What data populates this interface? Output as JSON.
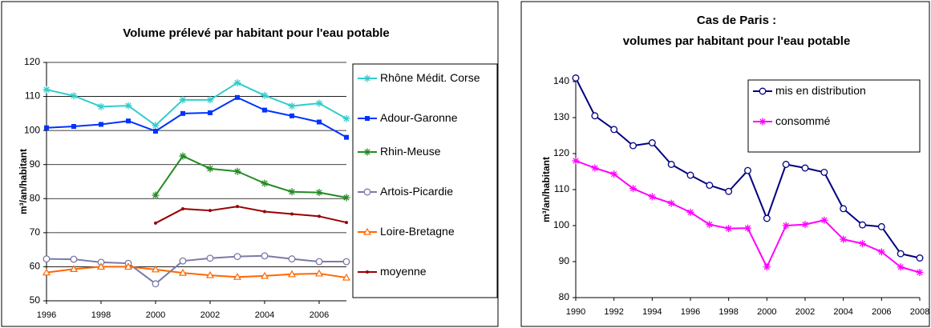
{
  "chart_data": [
    {
      "type": "line",
      "title": "Volume prélevé par habitant pour l'eau potable",
      "y_label": "m³/an/habitant",
      "x": [
        1996,
        1997,
        1998,
        1999,
        2000,
        2001,
        2002,
        2003,
        2004,
        2005,
        2006,
        2007
      ],
      "xlim": [
        1996,
        2007
      ],
      "xticks": [
        1996,
        1998,
        2000,
        2002,
        2004,
        2006
      ],
      "ylim": [
        50,
        120
      ],
      "yticks": [
        50,
        60,
        70,
        80,
        90,
        100,
        110,
        120
      ],
      "grid": true,
      "legend": "right",
      "series": [
        {
          "name": "Rhône Médit. Corse",
          "color": "#33cccc",
          "marker": "star",
          "values": [
            112,
            110.2,
            107,
            107.3,
            101.5,
            109,
            109,
            114,
            110.3,
            107.2,
            108,
            103.5
          ]
        },
        {
          "name": "Adour-Garonne",
          "color": "#0033ff",
          "marker": "square",
          "values": [
            100.8,
            101.2,
            101.8,
            102.8,
            99.8,
            105,
            105.2,
            109.7,
            106,
            104.3,
            102.5,
            98
          ]
        },
        {
          "name": "Rhin-Meuse",
          "color": "#228b22",
          "marker": "star",
          "values": [
            null,
            null,
            null,
            null,
            81,
            92.5,
            88.8,
            88,
            84.5,
            82,
            81.8,
            80.3
          ]
        },
        {
          "name": "Artois-Picardie",
          "color": "#7a7aa8",
          "marker": "circle",
          "values": [
            62.3,
            62.2,
            61.3,
            61,
            55,
            61.7,
            62.5,
            63,
            63.2,
            62.3,
            61.5,
            61.5
          ]
        },
        {
          "name": "Loire-Bretagne",
          "color": "#ff6600",
          "marker": "triangle",
          "values": [
            58.3,
            59.3,
            60,
            60,
            59.2,
            58.2,
            57.5,
            57,
            57.3,
            57.8,
            58,
            56.8
          ]
        },
        {
          "name": "moyenne",
          "color": "#990000",
          "marker": "dot",
          "values": [
            null,
            null,
            null,
            null,
            72.8,
            77,
            76.5,
            77.7,
            76.2,
            75.5,
            74.8,
            73
          ]
        }
      ]
    },
    {
      "type": "line",
      "title": "Cas de Paris :",
      "subtitle": "volumes par habitant pour l'eau potable",
      "y_label": "m³/an/habitant",
      "x": [
        1990,
        1991,
        1992,
        1993,
        1994,
        1995,
        1996,
        1997,
        1998,
        1999,
        2000,
        2001,
        2002,
        2003,
        2004,
        2005,
        2006,
        2007,
        2008
      ],
      "xlim": [
        1990,
        2008
      ],
      "xticks": [
        1990,
        1992,
        1994,
        1996,
        1998,
        2000,
        2002,
        2004,
        2006,
        2008
      ],
      "ylim": [
        80,
        140
      ],
      "yticks": [
        80,
        90,
        100,
        110,
        120,
        130,
        140
      ],
      "grid": false,
      "legend": "upper right",
      "series": [
        {
          "name": "mis en distribution",
          "color": "#000080",
          "marker": "circle",
          "values": [
            141,
            130.5,
            126.7,
            122.2,
            123,
            117,
            114,
            111.2,
            109.5,
            115.3,
            102,
            117,
            116,
            114.8,
            104.7,
            100.2,
            99.7,
            92.2,
            91
          ]
        },
        {
          "name": "consommé",
          "color": "#ff00ff",
          "marker": "star",
          "values": [
            118,
            116,
            114.3,
            110.3,
            108,
            106.2,
            103.7,
            100.3,
            99.2,
            99.3,
            88.5,
            100,
            100.3,
            101.5,
            96.2,
            95,
            92.7,
            88.5,
            87
          ]
        }
      ]
    }
  ]
}
